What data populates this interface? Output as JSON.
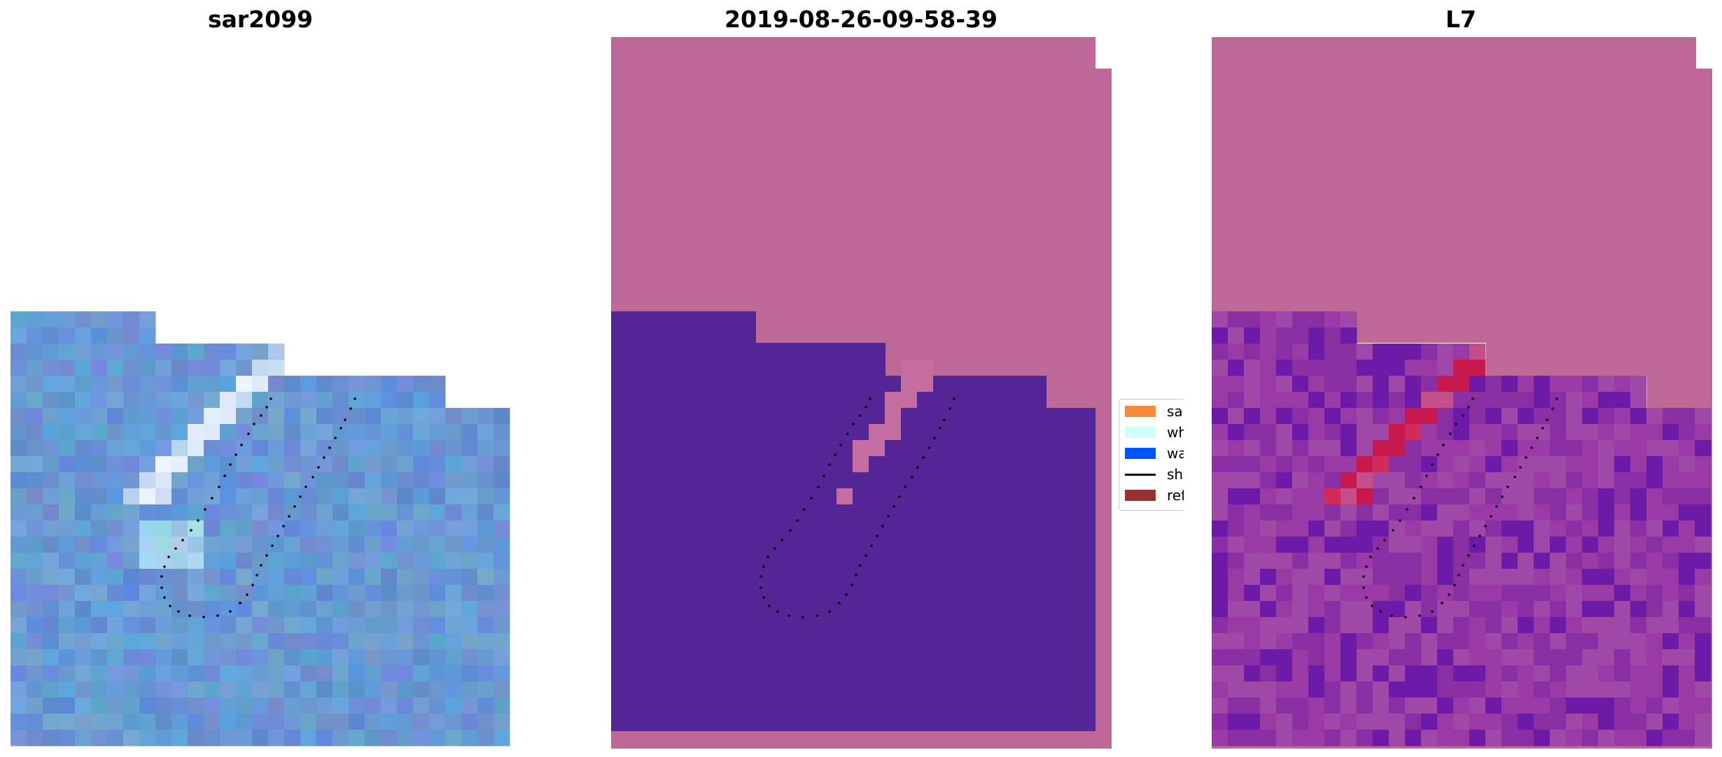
{
  "panels": [
    {
      "title": "sar2099"
    },
    {
      "title": "2019-08-26-09-58-39"
    },
    {
      "title": "L7"
    }
  ],
  "legend": {
    "entries": [
      {
        "label": "sand",
        "color": "#f58a3c"
      },
      {
        "label": "whitew",
        "color": "#ccfffe"
      },
      {
        "label": "water",
        "color": "#0055ff"
      },
      {
        "label": "shoreli",
        "color": "#000000",
        "kind": "line"
      },
      {
        "label": "referen",
        "color": "#9b3032"
      }
    ]
  },
  "colors": {
    "no_data": "#bd6897",
    "water_class": "#542595",
    "whitewater_class": "#c46da0",
    "rgb_base": "#5f8bcc"
  }
}
